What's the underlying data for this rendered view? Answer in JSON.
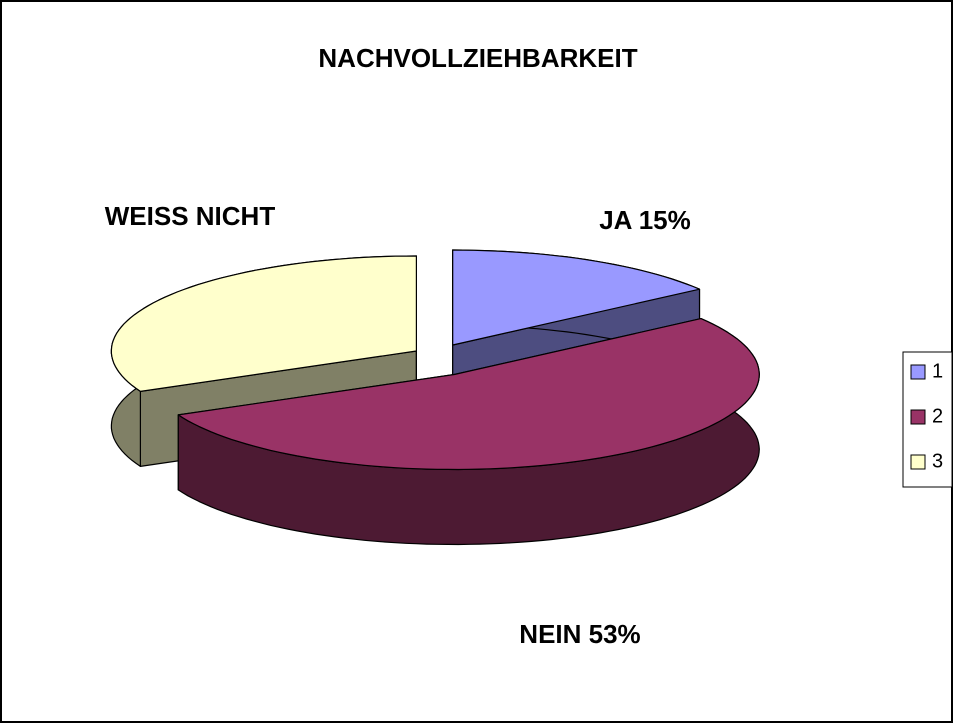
{
  "chart_data": {
    "type": "pie3d",
    "title": "NACHVOLLZIEHBARKEIT",
    "categories": [
      "1",
      "2",
      "3"
    ],
    "values": [
      15,
      53,
      32
    ],
    "value_labels": [
      "JA 15%",
      "NEIN 53%",
      "WEISS NICHT"
    ],
    "colors": [
      "#9999ff",
      "#993366",
      "#ffffcc"
    ],
    "legend": "right"
  }
}
